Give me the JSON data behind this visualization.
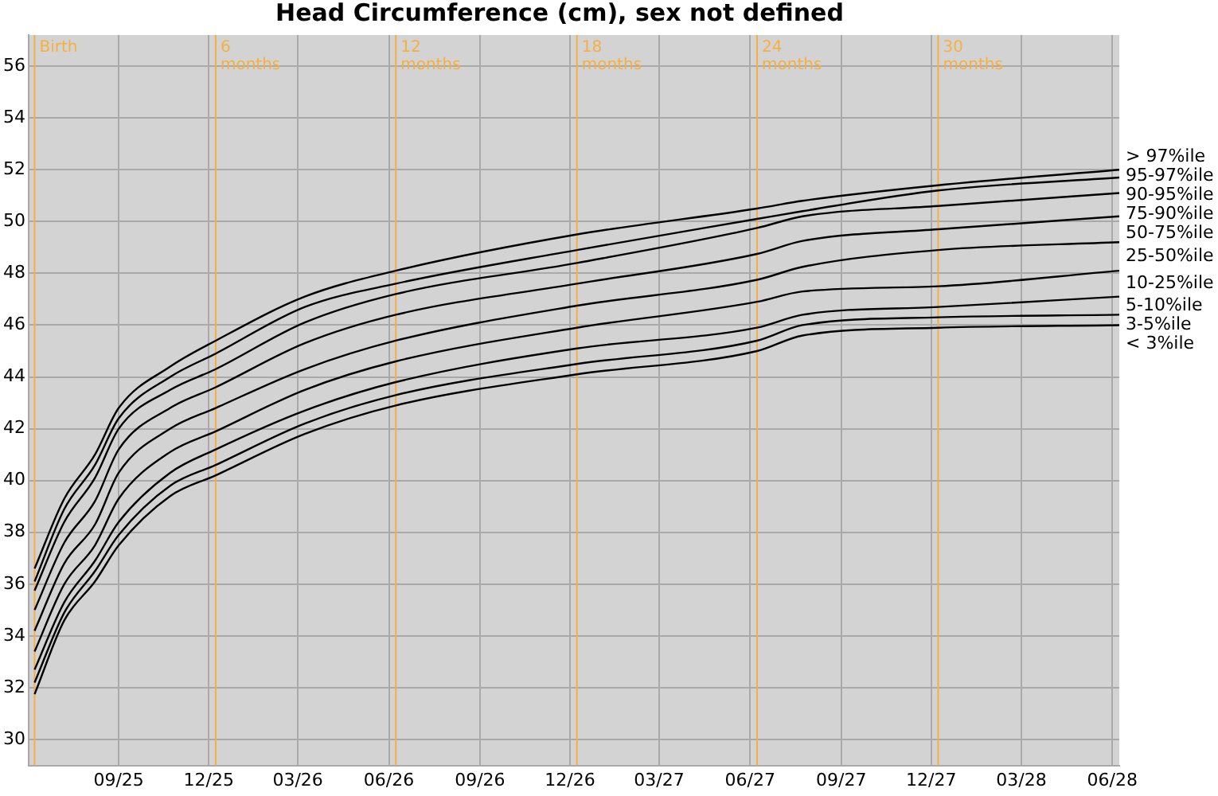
{
  "chart_data": {
    "type": "line",
    "title": "Head Circumference (cm), sex not defined",
    "x": [
      "2025-06-08",
      "2025-07-08",
      "2025-08-08",
      "2025-09-01",
      "2025-10-23",
      "2025-12-08",
      "2026-03-08",
      "2026-06-08",
      "2026-12-08",
      "2027-06-08",
      "2027-07-24",
      "2027-12-08",
      "2028-06-08"
    ],
    "series": [
      {
        "color": "#000000",
        "values": [
          36.6,
          39.3,
          41.0,
          42.8,
          44.4,
          45.4,
          47.1,
          48.1,
          49.5,
          50.5,
          50.8,
          51.4,
          52.0
        ]
      },
      {
        "color": "#000000",
        "values": [
          36.1,
          38.9,
          40.6,
          42.4,
          44.0,
          44.9,
          46.7,
          47.6,
          48.9,
          50.1,
          50.4,
          51.2,
          51.7
        ]
      },
      {
        "color": "#000000",
        "values": [
          35.75,
          38.4,
          40.1,
          42.0,
          43.5,
          44.3,
          46.1,
          47.2,
          48.4,
          49.75,
          50.2,
          50.6,
          51.1
        ]
      },
      {
        "color": "#000000",
        "values": [
          35.0,
          37.6,
          39.2,
          41.2,
          42.8,
          43.6,
          45.3,
          46.4,
          47.6,
          48.75,
          49.25,
          49.7,
          50.2
        ]
      },
      {
        "color": "#000000",
        "values": [
          34.2,
          36.8,
          38.3,
          40.3,
          42.0,
          42.8,
          44.3,
          45.4,
          46.75,
          47.75,
          48.25,
          48.9,
          49.2
        ]
      },
      {
        "color": "#000000",
        "values": [
          33.4,
          36.0,
          37.5,
          39.3,
          41.1,
          41.9,
          43.5,
          44.6,
          45.9,
          46.9,
          47.3,
          47.5,
          48.1
        ]
      },
      {
        "color": "#000000",
        "values": [
          32.7,
          35.3,
          36.9,
          38.4,
          40.3,
          41.2,
          42.7,
          43.8,
          45.1,
          45.9,
          46.4,
          46.7,
          47.1
        ]
      },
      {
        "color": "#000000",
        "values": [
          32.2,
          34.9,
          36.5,
          37.9,
          39.8,
          40.6,
          42.2,
          43.3,
          44.5,
          45.4,
          46.0,
          46.3,
          46.4
        ]
      },
      {
        "color": "#000000",
        "values": [
          31.75,
          34.6,
          36.1,
          37.5,
          39.4,
          40.2,
          41.8,
          42.9,
          44.1,
          45.0,
          45.6,
          45.9,
          46.0
        ]
      }
    ],
    "xlim": [
      "2025-06-02",
      "2028-06-08"
    ],
    "xticks": [
      {
        "value": "2025-09-01",
        "label": "09/25"
      },
      {
        "value": "2025-12-01",
        "label": "12/25"
      },
      {
        "value": "2026-03-01",
        "label": "03/26"
      },
      {
        "value": "2026-06-01",
        "label": "06/26"
      },
      {
        "value": "2026-09-01",
        "label": "09/26"
      },
      {
        "value": "2026-12-01",
        "label": "12/26"
      },
      {
        "value": "2027-03-01",
        "label": "03/27"
      },
      {
        "value": "2027-06-01",
        "label": "06/27"
      },
      {
        "value": "2027-09-01",
        "label": "09/27"
      },
      {
        "value": "2027-12-01",
        "label": "12/27"
      },
      {
        "value": "2028-03-01",
        "label": "03/28"
      },
      {
        "value": "2028-06-01",
        "label": "06/28"
      }
    ],
    "ylim": [
      29,
      57.2
    ],
    "yticks": [
      30,
      32,
      34,
      36,
      38,
      40,
      42,
      44,
      46,
      48,
      50,
      52,
      54,
      56
    ],
    "grid": true,
    "legend": false,
    "marker": "none",
    "line_style": "solid",
    "ref_lines": [
      {
        "axis": "x",
        "value": "2025-06-08",
        "label": "Birth",
        "color": "#f5b041"
      },
      {
        "axis": "x",
        "value": "2025-12-08",
        "label": "6 months",
        "color": "#f5b041"
      },
      {
        "axis": "x",
        "value": "2026-06-08",
        "label": "12 months",
        "color": "#f5b041"
      },
      {
        "axis": "x",
        "value": "2026-12-08",
        "label": "18 months",
        "color": "#f5b041"
      },
      {
        "axis": "x",
        "value": "2027-06-08",
        "label": "24 months",
        "color": "#f5b041"
      },
      {
        "axis": "x",
        "value": "2027-12-08",
        "label": "30 months",
        "color": "#f5b041"
      }
    ],
    "annotations": [
      "> 97%ile",
      "95-97%ile",
      "90-95%ile",
      "75-90%ile",
      "50-75%ile",
      "25-50%ile",
      "10-25%ile",
      "5-10%ile",
      "3-5%ile",
      "< 3%ile"
    ]
  }
}
